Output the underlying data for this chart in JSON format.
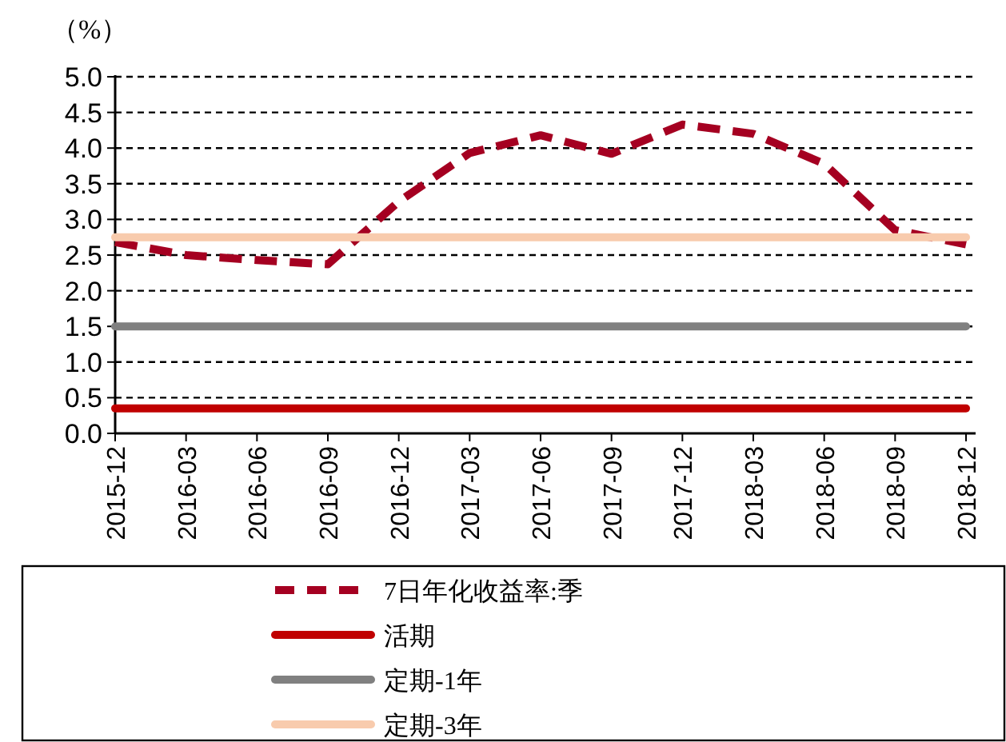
{
  "chart_data": {
    "type": "line",
    "ylabel": "（%）",
    "categories": [
      "2015-12",
      "2016-03",
      "2016-06",
      "2016-09",
      "2016-12",
      "2017-03",
      "2017-06",
      "2017-09",
      "2017-12",
      "2018-03",
      "2018-06",
      "2018-09",
      "2018-12"
    ],
    "ylim": [
      0,
      5
    ],
    "yticks": [
      {
        "value": 0,
        "label": "0.0"
      },
      {
        "value": 0.5,
        "label": "0.5"
      },
      {
        "value": 1,
        "label": "1.0"
      },
      {
        "value": 1.5,
        "label": "1.5"
      },
      {
        "value": 2,
        "label": "2.0"
      },
      {
        "value": 2.5,
        "label": "2.5"
      },
      {
        "value": 3,
        "label": "3.0"
      },
      {
        "value": 3.5,
        "label": "3.5"
      },
      {
        "value": 4,
        "label": "4.0"
      },
      {
        "value": 4.5,
        "label": "4.5"
      },
      {
        "value": 5,
        "label": "5.0"
      }
    ],
    "grid": "y",
    "legend": "bottom",
    "marker": "none",
    "series": [
      {
        "name": "7日年化收益率:季",
        "color": "#a50021",
        "line_style": "dashed",
        "values": [
          2.68,
          2.5,
          2.43,
          2.37,
          3.25,
          3.93,
          4.18,
          3.92,
          4.33,
          4.2,
          3.78,
          2.85,
          2.65
        ]
      },
      {
        "name": "活期",
        "color": "#c00000",
        "line_style": "solid",
        "values": [
          0.35,
          0.35,
          0.35,
          0.35,
          0.35,
          0.35,
          0.35,
          0.35,
          0.35,
          0.35,
          0.35,
          0.35,
          0.35
        ]
      },
      {
        "name": "定期-1年",
        "color": "#808080",
        "line_style": "solid",
        "values": [
          1.5,
          1.5,
          1.5,
          1.5,
          1.5,
          1.5,
          1.5,
          1.5,
          1.5,
          1.5,
          1.5,
          1.5,
          1.5
        ]
      },
      {
        "name": "定期-3年",
        "color": "#f8cbad",
        "line_style": "solid",
        "values": [
          2.75,
          2.75,
          2.75,
          2.75,
          2.75,
          2.75,
          2.75,
          2.75,
          2.75,
          2.75,
          2.75,
          2.75,
          2.75
        ]
      }
    ]
  }
}
